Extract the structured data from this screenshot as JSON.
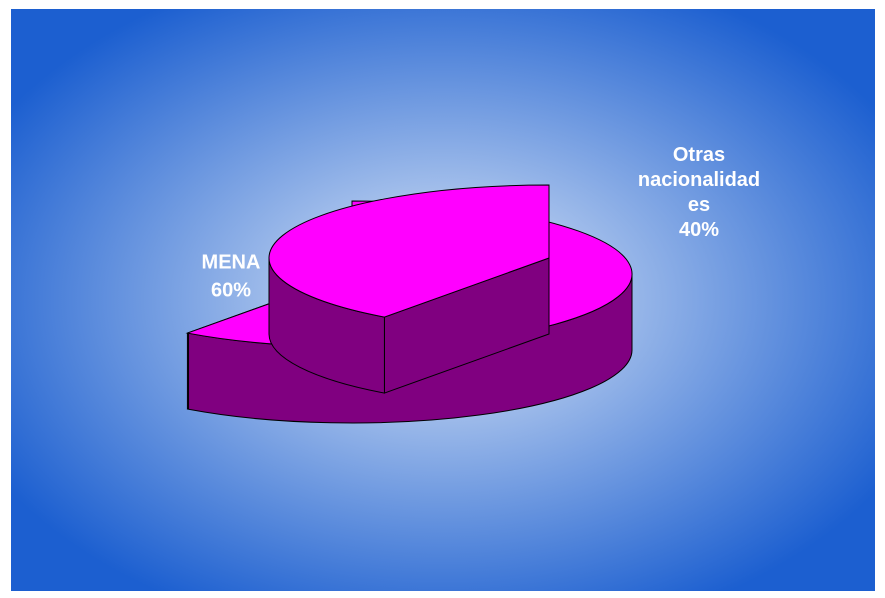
{
  "chart_data": {
    "type": "pie",
    "style": "3d-exploded",
    "categories": [
      "MENA",
      "Otras nacionalidades"
    ],
    "values": [
      60,
      40
    ],
    "labels": [
      {
        "lines": [
          "MENA",
          "60%"
        ]
      },
      {
        "lines": [
          "Otras",
          "nacionalidad",
          "es",
          "40%"
        ]
      }
    ],
    "title": "",
    "legend": "none",
    "colors": {
      "slice_top": "#ff00ff",
      "slice_side": "#800080",
      "edge": "#000000",
      "label_text": "#ffffff",
      "background_center": "#dfe9f7",
      "background_edge": "#1c5fd0"
    }
  }
}
